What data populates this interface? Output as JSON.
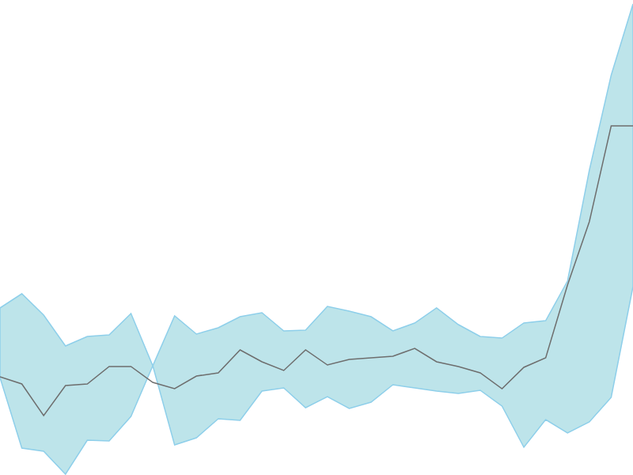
{
  "chart_data": {
    "type": "line",
    "tick_labels": false,
    "grid": false,
    "x": [
      0,
      1,
      2,
      3,
      4,
      5,
      6,
      7,
      8,
      9,
      10,
      11,
      12,
      13,
      14,
      15,
      16,
      17,
      18,
      19,
      20,
      21,
      22,
      23,
      24,
      25,
      26,
      27,
      28,
      29
    ],
    "xlim": [
      0,
      29
    ],
    "ylim": [
      0,
      600
    ],
    "series": [
      {
        "type": "band",
        "color": "#bde4ea",
        "upper": [
          211,
          229,
          202,
          163,
          175,
          177,
          204,
          138,
          201,
          178,
          186,
          200,
          205,
          182,
          183,
          213,
          207,
          200,
          182,
          192,
          211,
          190,
          175,
          173,
          192,
          195,
          245,
          385,
          505,
          595
        ],
        "lower": [
          123,
          34,
          30,
          1,
          44,
          43,
          74,
          138,
          38,
          47,
          71,
          69,
          106,
          110,
          85,
          99,
          84,
          92,
          114,
          110,
          106,
          103,
          107,
          87,
          35,
          70,
          53,
          67,
          98,
          238
        ]
      },
      {
        "type": "line",
        "color": "#6e6e6e",
        "values": [
          124,
          115,
          75,
          113,
          115,
          137,
          137,
          117,
          109,
          125,
          129,
          158,
          143,
          132,
          158,
          139,
          146,
          148,
          150,
          160,
          143,
          137,
          129,
          109,
          136,
          148,
          240,
          320,
          441,
          441
        ]
      }
    ]
  }
}
